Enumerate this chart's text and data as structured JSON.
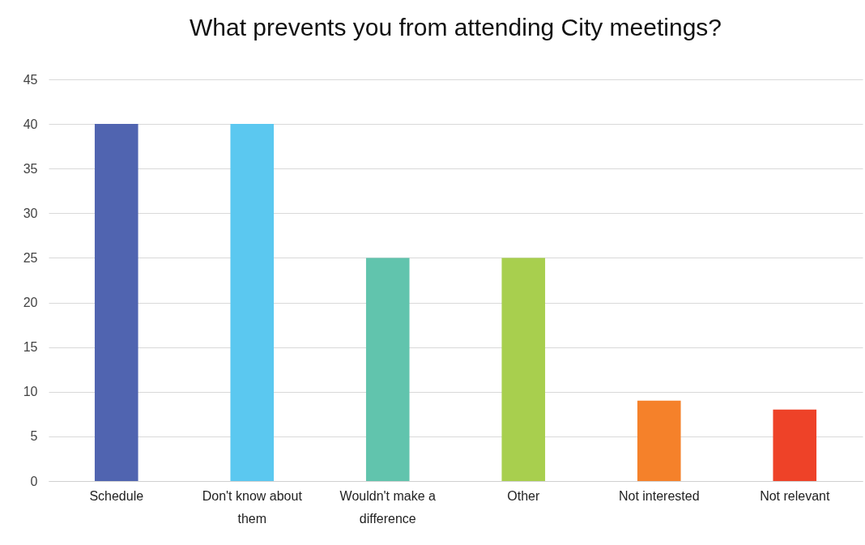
{
  "chart_data": {
    "type": "bar",
    "title": "What prevents you from attending City meetings?",
    "categories": [
      "Schedule",
      "Don't know about them",
      "Wouldn't make a difference",
      "Other",
      "Not interested",
      "Not relevant"
    ],
    "values": [
      40,
      40,
      25,
      25,
      9,
      8
    ],
    "colors": [
      "#5064b0",
      "#5bc8f0",
      "#61c4ad",
      "#a8cf4e",
      "#f5812a",
      "#ee4228"
    ],
    "ylim": [
      0,
      45
    ],
    "yticks": [
      0,
      5,
      10,
      15,
      20,
      25,
      30,
      35,
      40,
      45
    ],
    "grid": "y"
  }
}
